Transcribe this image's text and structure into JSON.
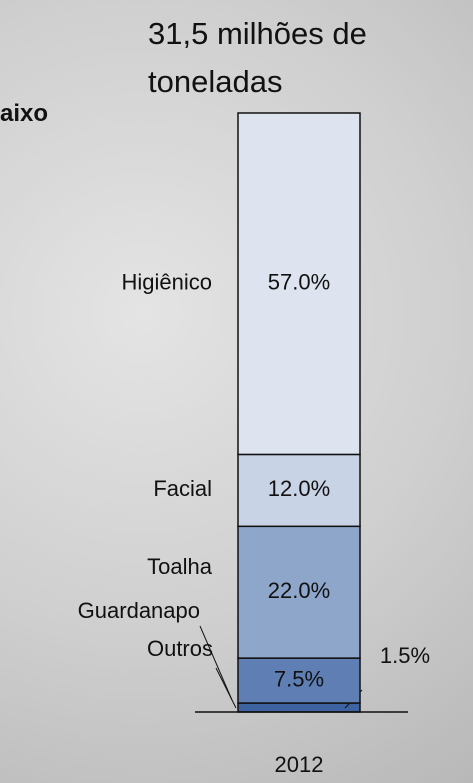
{
  "chart_data": {
    "type": "stacked_bar",
    "title": "31,5 milhões de toneladas",
    "annotations": [
      "aixo"
    ],
    "categories": [
      "2012"
    ],
    "ylim": [
      0,
      100
    ],
    "series": [
      {
        "name": "Outros",
        "color": "#3d63a0",
        "values": [
          1.5
        ],
        "value_labels": [
          "1.5%"
        ]
      },
      {
        "name": "Guardanapo",
        "color": "#5f7fb4",
        "values": [
          7.5
        ],
        "value_labels": [
          "7.5%"
        ]
      },
      {
        "name": "Toalha",
        "color": "#8fa6cb",
        "values": [
          22.0
        ],
        "value_labels": [
          "22.0%"
        ]
      },
      {
        "name": "Facial",
        "color": "#c9d3e6",
        "values": [
          12.0
        ],
        "value_labels": [
          "12.0%"
        ]
      },
      {
        "name": "Higiênico",
        "color": "#dde4ef",
        "values": [
          57.0
        ],
        "value_labels": [
          "57.0%"
        ]
      }
    ]
  }
}
